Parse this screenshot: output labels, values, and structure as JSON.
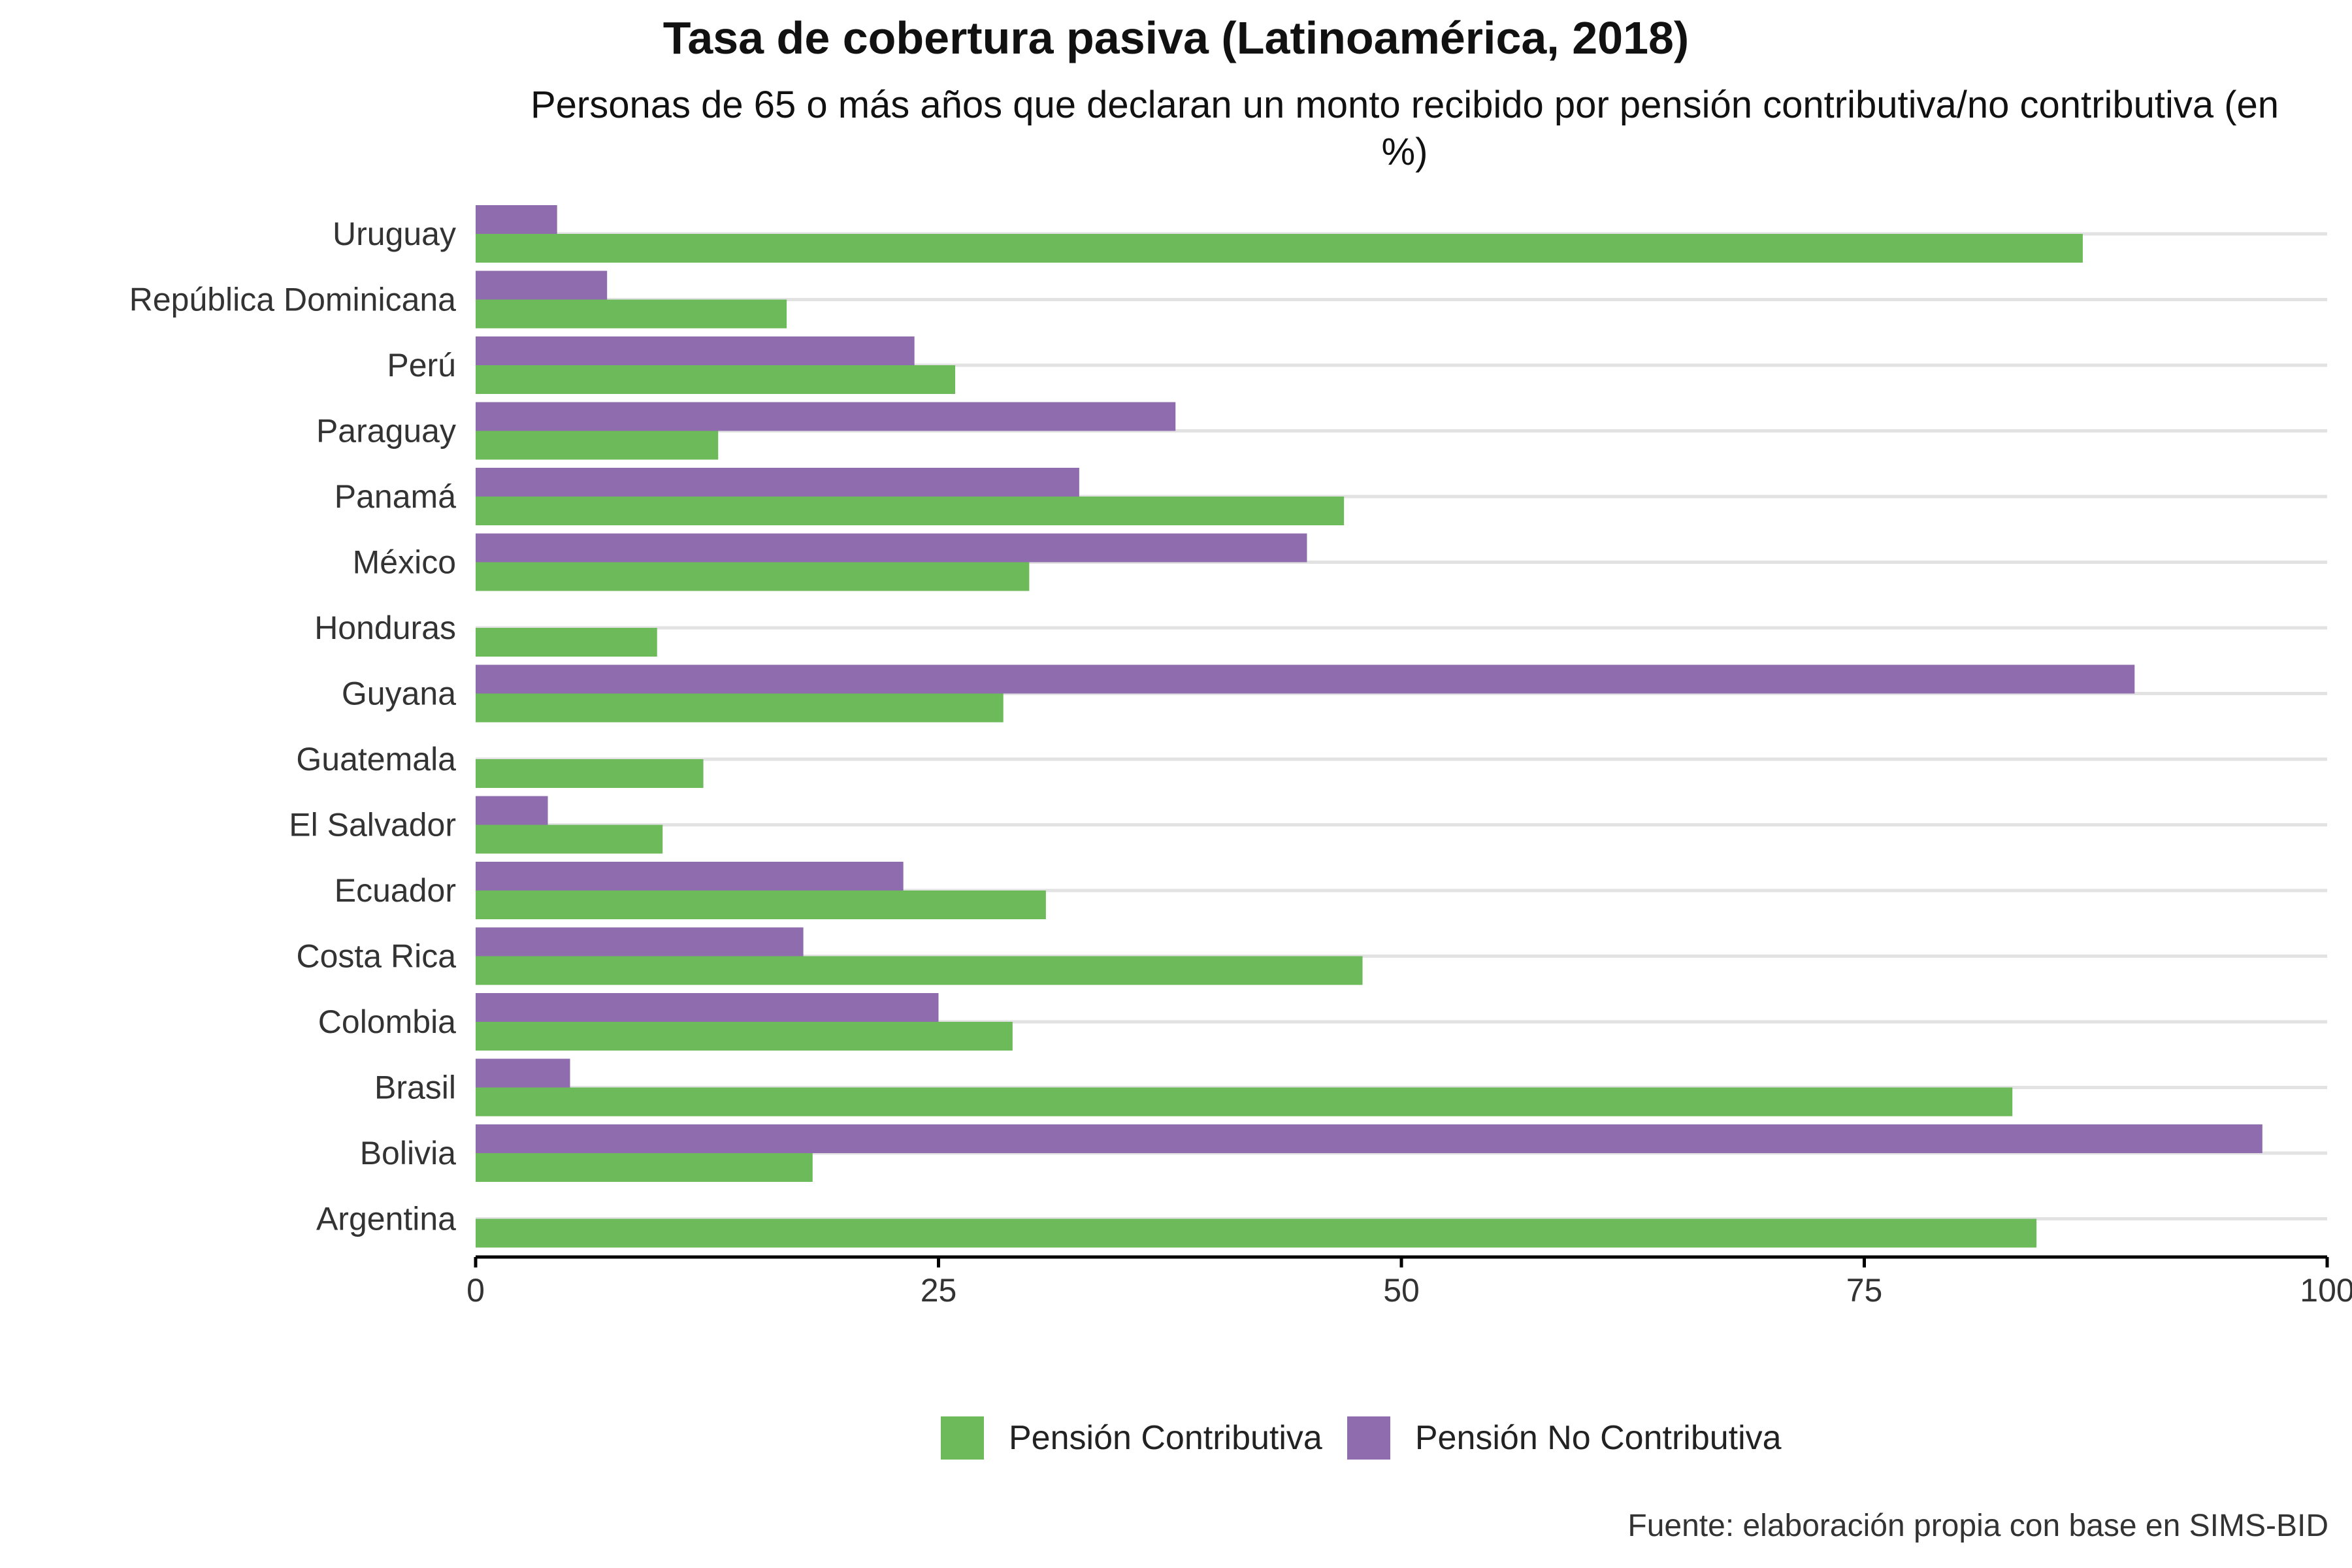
{
  "colors": {
    "contributiva": "#6cba5a",
    "no_contributiva": "#8f6cae",
    "grid": "#e2e2e2",
    "axis": "#000000"
  },
  "chart_data": {
    "type": "bar",
    "orientation": "horizontal",
    "title": "Tasa de cobertura pasiva (Latinoamérica, 2018)",
    "subtitle": "Personas de 65 o más años que declaran un monto recibido por pensión contributiva/no contributiva (en %)",
    "caption": "Fuente: elaboración propia con base en SIMS-BID",
    "xlim": [
      0,
      100
    ],
    "xticks": [
      "0",
      "25",
      "50",
      "75",
      "100"
    ],
    "grid": "horizontal",
    "legend_position": "bottom",
    "categories": [
      "Uruguay",
      "República Dominicana",
      "Perú",
      "Paraguay",
      "Panamá",
      "México",
      "Honduras",
      "Guyana",
      "Guatemala",
      "El Salvador",
      "Ecuador",
      "Costa Rica",
      "Colombia",
      "Brasil",
      "Bolivia",
      "Argentina"
    ],
    "series": [
      {
        "name": "Pensión Contributiva",
        "values": [
          86.8,
          16.8,
          25.9,
          13.1,
          46.9,
          29.9,
          9.8,
          28.5,
          12.3,
          10.1,
          30.8,
          47.9,
          29.0,
          83.0,
          18.2,
          84.3
        ]
      },
      {
        "name": "Pensión No Contributiva",
        "values": [
          4.4,
          7.1,
          23.7,
          37.8,
          32.6,
          44.9,
          0,
          89.6,
          0,
          3.9,
          23.1,
          17.7,
          25.0,
          5.1,
          96.5,
          0
        ]
      }
    ]
  }
}
